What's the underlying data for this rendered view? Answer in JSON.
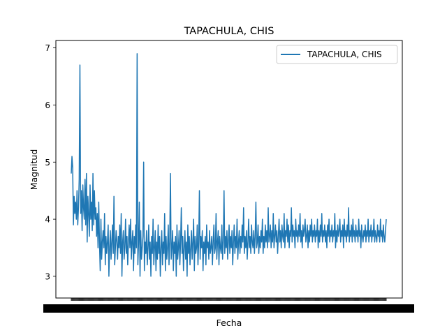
{
  "chart_data": {
    "type": "line",
    "title": "TAPACHULA, CHIS",
    "xlabel": "Fecha",
    "ylabel": "Magnitud",
    "ylim": [
      2.62,
      7.13
    ],
    "yticks": [
      3,
      4,
      5,
      6,
      7
    ],
    "grid": false,
    "legend_position": "top-right",
    "x_tick_labels_note": "hundreds of overlapping date labels, unreadable",
    "series": [
      {
        "name": "TAPACHULA, CHIS",
        "color": "#1f77b4",
        "values": [
          4.8,
          5.1,
          4.9,
          3.9,
          4.4,
          4.1,
          4.3,
          4.0,
          4.5,
          3.9,
          4.2,
          4.7,
          6.7,
          4.1,
          4.5,
          3.8,
          4.6,
          4.2,
          4.0,
          4.7,
          3.9,
          4.8,
          3.6,
          4.4,
          4.1,
          3.7,
          4.6,
          4.0,
          4.3,
          3.8,
          4.8,
          3.9,
          4.5,
          4.0,
          4.2,
          3.7,
          4.1,
          3.5,
          4.3,
          3.6,
          3.1,
          4.0,
          3.3,
          3.6,
          3.8,
          3.5,
          4.1,
          3.2,
          3.7,
          3.4,
          3.6,
          3.9,
          3.0,
          3.5,
          3.8,
          3.3,
          3.6,
          3.9,
          3.4,
          4.4,
          3.2,
          3.5,
          3.8,
          3.6,
          3.3,
          3.7,
          3.5,
          3.9,
          3.4,
          4.1,
          3.0,
          3.6,
          3.8,
          3.3,
          3.5,
          4.0,
          3.4,
          3.7,
          3.2,
          3.6,
          3.9,
          3.5,
          4.0,
          3.3,
          3.6,
          3.8,
          3.1,
          3.7,
          3.4,
          3.9,
          3.5,
          6.9,
          3.2,
          3.6,
          4.3,
          3.0,
          3.8,
          3.3,
          3.5,
          3.7,
          5.0,
          3.1,
          3.6,
          3.4,
          3.8,
          3.2,
          3.5,
          3.9,
          3.3,
          3.6,
          3.0,
          3.7,
          3.4,
          4.0,
          3.2,
          3.5,
          3.8,
          3.1,
          3.6,
          3.3,
          3.9,
          3.4,
          3.7,
          3.0,
          3.5,
          3.8,
          3.2,
          3.6,
          3.4,
          4.1,
          3.1,
          3.7,
          3.3,
          3.5,
          3.9,
          3.2,
          3.6,
          4.8,
          3.3,
          3.5,
          3.8,
          3.1,
          3.6,
          3.4,
          3.7,
          3.0,
          3.9,
          3.3,
          3.5,
          3.8,
          3.2,
          3.6,
          4.2,
          3.4,
          3.7,
          3.1,
          3.5,
          3.8,
          3.3,
          3.6,
          3.0,
          3.9,
          3.4,
          3.7,
          3.2,
          3.5,
          3.8,
          3.3,
          3.6,
          4.0,
          3.1,
          3.7,
          3.4,
          3.5,
          3.9,
          3.2,
          3.6,
          4.5,
          3.3,
          3.7,
          3.5,
          3.8,
          3.1,
          3.6,
          3.4,
          3.7,
          3.2,
          3.9,
          3.5,
          3.6,
          3.3,
          3.8,
          3.4,
          3.5,
          3.7,
          3.2,
          3.6,
          3.9,
          3.4,
          3.5,
          4.1,
          3.3,
          3.6,
          3.8,
          3.2,
          3.7,
          3.5,
          3.4,
          3.9,
          3.3,
          3.6,
          4.5,
          3.4,
          3.7,
          3.5,
          3.8,
          3.3,
          3.6,
          3.9,
          3.4,
          3.7,
          3.5,
          3.8,
          3.2,
          3.6,
          3.9,
          3.4,
          3.7,
          3.5,
          4.0,
          3.3,
          3.6,
          3.8,
          3.4,
          3.7,
          3.5,
          3.9,
          3.6,
          4.2,
          3.4,
          3.7,
          3.5,
          3.8,
          3.3,
          3.6,
          4.0,
          3.5,
          3.7,
          3.4,
          3.9,
          3.6,
          3.5,
          3.8,
          3.4,
          3.7,
          4.3,
          3.5,
          3.6,
          3.9,
          3.4,
          3.7,
          3.5,
          3.8,
          3.6,
          4.0,
          3.4,
          3.7,
          3.5,
          3.9,
          3.6,
          3.8,
          3.5,
          4.2,
          3.6,
          3.7,
          3.9,
          3.5,
          3.8,
          3.6,
          4.1,
          3.5,
          3.7,
          3.9,
          3.6,
          3.8,
          3.4,
          3.7,
          4.0,
          3.6,
          3.8,
          3.5,
          3.9,
          3.7,
          3.6,
          4.1,
          3.5,
          3.8,
          3.7,
          4.0,
          3.6,
          3.9,
          3.5,
          3.8,
          3.7,
          4.2,
          3.6,
          3.9,
          3.7,
          3.8,
          3.5,
          4.0,
          3.7,
          3.8,
          3.6,
          3.9,
          3.7,
          4.1,
          3.6,
          3.8,
          3.5,
          3.9,
          3.7,
          3.8,
          4.0,
          3.6,
          3.7,
          3.9,
          3.5,
          3.8,
          3.6,
          3.9,
          3.7,
          4.0,
          3.6,
          3.8,
          3.7,
          3.9,
          3.6,
          3.8,
          3.7,
          4.0,
          3.5,
          3.8,
          3.6,
          3.9,
          3.7,
          4.1,
          3.6,
          3.8,
          3.7,
          3.9,
          3.6,
          3.8,
          3.5,
          3.9,
          3.7,
          4.0,
          3.6,
          3.8,
          3.7,
          3.9,
          3.6,
          3.8,
          3.7,
          4.1,
          3.5,
          3.8,
          3.6,
          3.9,
          3.7,
          3.8,
          4.0,
          3.6,
          3.8,
          3.7,
          3.9,
          3.5,
          4.0,
          3.7,
          3.8,
          3.6,
          3.9,
          3.7,
          4.2,
          3.6,
          3.8,
          3.7,
          3.9,
          3.6,
          4.0,
          3.7,
          3.8,
          3.6,
          3.9,
          3.7,
          3.8,
          3.6,
          4.0,
          3.7,
          3.8,
          3.5,
          3.9,
          3.7,
          3.6,
          3.8,
          3.7,
          3.9,
          3.6,
          3.8,
          3.7,
          4.0,
          3.6,
          3.8,
          3.7,
          3.9,
          3.6,
          3.8,
          3.7,
          4.0,
          3.6,
          3.8,
          3.7,
          3.6,
          3.9,
          3.7,
          3.8,
          3.6,
          4.0,
          3.7,
          3.8,
          3.6,
          3.9,
          3.7,
          3.6,
          3.8,
          4.0
        ]
      }
    ]
  }
}
